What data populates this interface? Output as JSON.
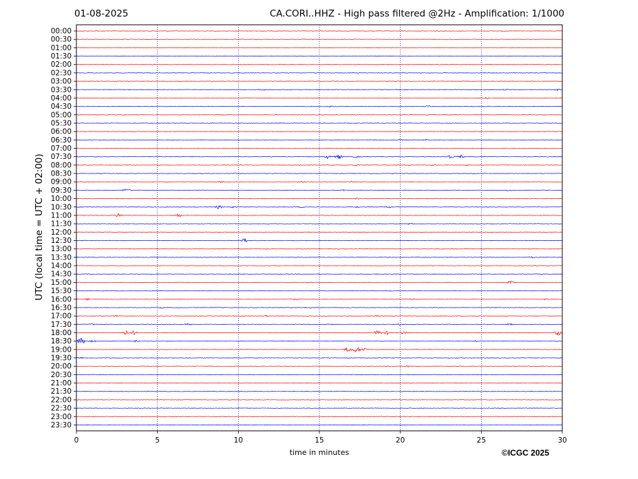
{
  "header": {
    "date": "01-08-2025",
    "station_title": "CA.CORI..HHZ - High pass filtered @2Hz - Amplification: 1/1000"
  },
  "footer": {
    "copyright": "©ICGC 2025"
  },
  "colors": {
    "red_trace": "#ff0000",
    "blue_trace": "#0000ff",
    "grid": "#000080",
    "axis": "#000000"
  },
  "chart_data": {
    "type": "line",
    "title": "CA.CORI..HHZ - High pass filtered @2Hz - Amplification: 1/1000",
    "xlabel": "time in minutes",
    "ylabel": "UTC (local time = UTC + 02:00)",
    "xlim": [
      0,
      30
    ],
    "x_ticks": [
      "0",
      "5",
      "10",
      "15",
      "20",
      "25",
      "30"
    ],
    "x_tick_values": [
      0,
      5,
      10,
      15,
      20,
      25,
      30
    ],
    "grid": "vertical dotted at 5-minute intervals",
    "rows": [
      {
        "label": "00:00",
        "color": "red",
        "events": []
      },
      {
        "label": "00:30",
        "color": "red",
        "events": []
      },
      {
        "label": "01:00",
        "color": "red",
        "events": []
      },
      {
        "label": "01:30",
        "color": "blue",
        "events": []
      },
      {
        "label": "02:00",
        "color": "red",
        "events": []
      },
      {
        "label": "02:30",
        "color": "blue",
        "events": []
      },
      {
        "label": "03:00",
        "color": "red",
        "events": []
      },
      {
        "label": "03:30",
        "color": "blue",
        "events": [
          {
            "t": 11.5,
            "amp": 1.5
          },
          {
            "t": 26.5,
            "amp": 1.2
          },
          {
            "t": 29.7,
            "amp": 1.5
          }
        ]
      },
      {
        "label": "04:00",
        "color": "red",
        "events": [
          {
            "t": 25.3,
            "amp": 1.2
          }
        ]
      },
      {
        "label": "04:30",
        "color": "blue",
        "events": [
          {
            "t": 15.7,
            "amp": 1.2
          },
          {
            "t": 21.7,
            "amp": 1.5
          }
        ]
      },
      {
        "label": "05:00",
        "color": "red",
        "events": [
          {
            "t": 8.9,
            "amp": 1.2
          }
        ]
      },
      {
        "label": "05:30",
        "color": "blue",
        "events": []
      },
      {
        "label": "06:00",
        "color": "red",
        "events": []
      },
      {
        "label": "06:30",
        "color": "blue",
        "events": [
          {
            "t": 20.0,
            "amp": 1.2
          },
          {
            "t": 21.6,
            "amp": 1.2
          }
        ]
      },
      {
        "label": "07:00",
        "color": "red",
        "events": []
      },
      {
        "label": "07:30",
        "color": "blue",
        "events": [
          {
            "t": 15.6,
            "amp": 4.0
          },
          {
            "t": 16.2,
            "amp": 3.5
          },
          {
            "t": 17.3,
            "amp": 1.5
          },
          {
            "t": 23.1,
            "amp": 3.5
          },
          {
            "t": 23.7,
            "amp": 3.0
          }
        ]
      },
      {
        "label": "08:00",
        "color": "red",
        "events": [
          {
            "t": 13.8,
            "amp": 1.2
          },
          {
            "t": 17.3,
            "amp": 1.2
          },
          {
            "t": 22.1,
            "amp": 1.2
          },
          {
            "t": 24.0,
            "amp": 1.5
          }
        ]
      },
      {
        "label": "08:30",
        "color": "blue",
        "events": []
      },
      {
        "label": "09:00",
        "color": "red",
        "events": [
          {
            "t": 8.9,
            "amp": 1.2
          },
          {
            "t": 14.0,
            "amp": 1.2
          },
          {
            "t": 16.9,
            "amp": 1.2
          }
        ]
      },
      {
        "label": "09:30",
        "color": "blue",
        "events": [
          {
            "t": 3.1,
            "amp": 3.0
          },
          {
            "t": 16.5,
            "amp": 1.2
          },
          {
            "t": 26.7,
            "amp": 1.2
          }
        ]
      },
      {
        "label": "10:00",
        "color": "red",
        "events": [
          {
            "t": 17.3,
            "amp": 1.2
          }
        ]
      },
      {
        "label": "10:30",
        "color": "blue",
        "events": [
          {
            "t": 8.8,
            "amp": 3.0
          },
          {
            "t": 9.7,
            "amp": 1.5
          },
          {
            "t": 13.9,
            "amp": 1.2
          },
          {
            "t": 17.3,
            "amp": 1.2
          },
          {
            "t": 19.3,
            "amp": 1.5
          }
        ]
      },
      {
        "label": "11:00",
        "color": "red",
        "events": [
          {
            "t": 2.6,
            "amp": 3.5
          },
          {
            "t": 6.3,
            "amp": 2.5
          }
        ]
      },
      {
        "label": "11:30",
        "color": "blue",
        "events": [
          {
            "t": 20.6,
            "amp": 1.5
          },
          {
            "t": 28.5,
            "amp": 1.2
          }
        ]
      },
      {
        "label": "12:00",
        "color": "red",
        "events": []
      },
      {
        "label": "12:30",
        "color": "blue",
        "events": [
          {
            "t": 10.4,
            "amp": 3.0
          }
        ]
      },
      {
        "label": "13:00",
        "color": "red",
        "events": []
      },
      {
        "label": "13:30",
        "color": "blue",
        "events": [
          {
            "t": 28.1,
            "amp": 1.2
          }
        ]
      },
      {
        "label": "14:00",
        "color": "red",
        "events": []
      },
      {
        "label": "14:30",
        "color": "blue",
        "events": []
      },
      {
        "label": "15:00",
        "color": "red",
        "events": [
          {
            "t": 26.8,
            "amp": 2.5
          }
        ]
      },
      {
        "label": "15:30",
        "color": "blue",
        "events": []
      },
      {
        "label": "16:00",
        "color": "red",
        "events": [
          {
            "t": 0.7,
            "amp": 1.5
          },
          {
            "t": 13.6,
            "amp": 1.5
          },
          {
            "t": 20.8,
            "amp": 1.2
          },
          {
            "t": 29.0,
            "amp": 1.2
          }
        ]
      },
      {
        "label": "16:30",
        "color": "blue",
        "events": [
          {
            "t": 5.3,
            "amp": 1.2
          },
          {
            "t": 14.3,
            "amp": 1.2
          }
        ]
      },
      {
        "label": "17:00",
        "color": "red",
        "events": [
          {
            "t": 2.4,
            "amp": 1.2
          },
          {
            "t": 11.7,
            "amp": 1.2
          },
          {
            "t": 18.6,
            "amp": 1.2
          }
        ]
      },
      {
        "label": "17:30",
        "color": "blue",
        "events": [
          {
            "t": 1.0,
            "amp": 1.5
          },
          {
            "t": 6.9,
            "amp": 1.5
          },
          {
            "t": 15.6,
            "amp": 1.5
          },
          {
            "t": 20.0,
            "amp": 1.5
          },
          {
            "t": 26.8,
            "amp": 1.5
          }
        ]
      },
      {
        "label": "18:00",
        "color": "red",
        "events": [
          {
            "t": 3.0,
            "amp": 4.0
          },
          {
            "t": 3.6,
            "amp": 3.5
          },
          {
            "t": 18.6,
            "amp": 4.0
          },
          {
            "t": 19.2,
            "amp": 3.0
          },
          {
            "t": 20.2,
            "amp": 2.0
          },
          {
            "t": 29.8,
            "amp": 5.0
          }
        ]
      },
      {
        "label": "18:30",
        "color": "blue",
        "events": [
          {
            "t": 0.3,
            "amp": 6.0
          },
          {
            "t": 1.0,
            "amp": 2.5
          },
          {
            "t": 3.6,
            "amp": 1.5
          },
          {
            "t": 24.6,
            "amp": 1.2
          }
        ]
      },
      {
        "label": "19:00",
        "color": "red",
        "events": [
          {
            "t": 16.8,
            "amp": 4.0
          },
          {
            "t": 17.3,
            "amp": 5.0
          },
          {
            "t": 17.8,
            "amp": 3.0
          }
        ]
      },
      {
        "label": "19:30",
        "color": "blue",
        "events": [
          {
            "t": 0.2,
            "amp": 1.5
          }
        ]
      },
      {
        "label": "20:00",
        "color": "red",
        "events": [
          {
            "t": 20.5,
            "amp": 1.5
          }
        ]
      },
      {
        "label": "20:30",
        "color": "blue",
        "events": []
      },
      {
        "label": "21:00",
        "color": "red",
        "events": []
      },
      {
        "label": "21:30",
        "color": "blue",
        "events": []
      },
      {
        "label": "22:00",
        "color": "red",
        "events": []
      },
      {
        "label": "22:30",
        "color": "blue",
        "events": []
      },
      {
        "label": "23:00",
        "color": "red",
        "events": []
      },
      {
        "label": "23:30",
        "color": "blue",
        "events": []
      }
    ]
  }
}
